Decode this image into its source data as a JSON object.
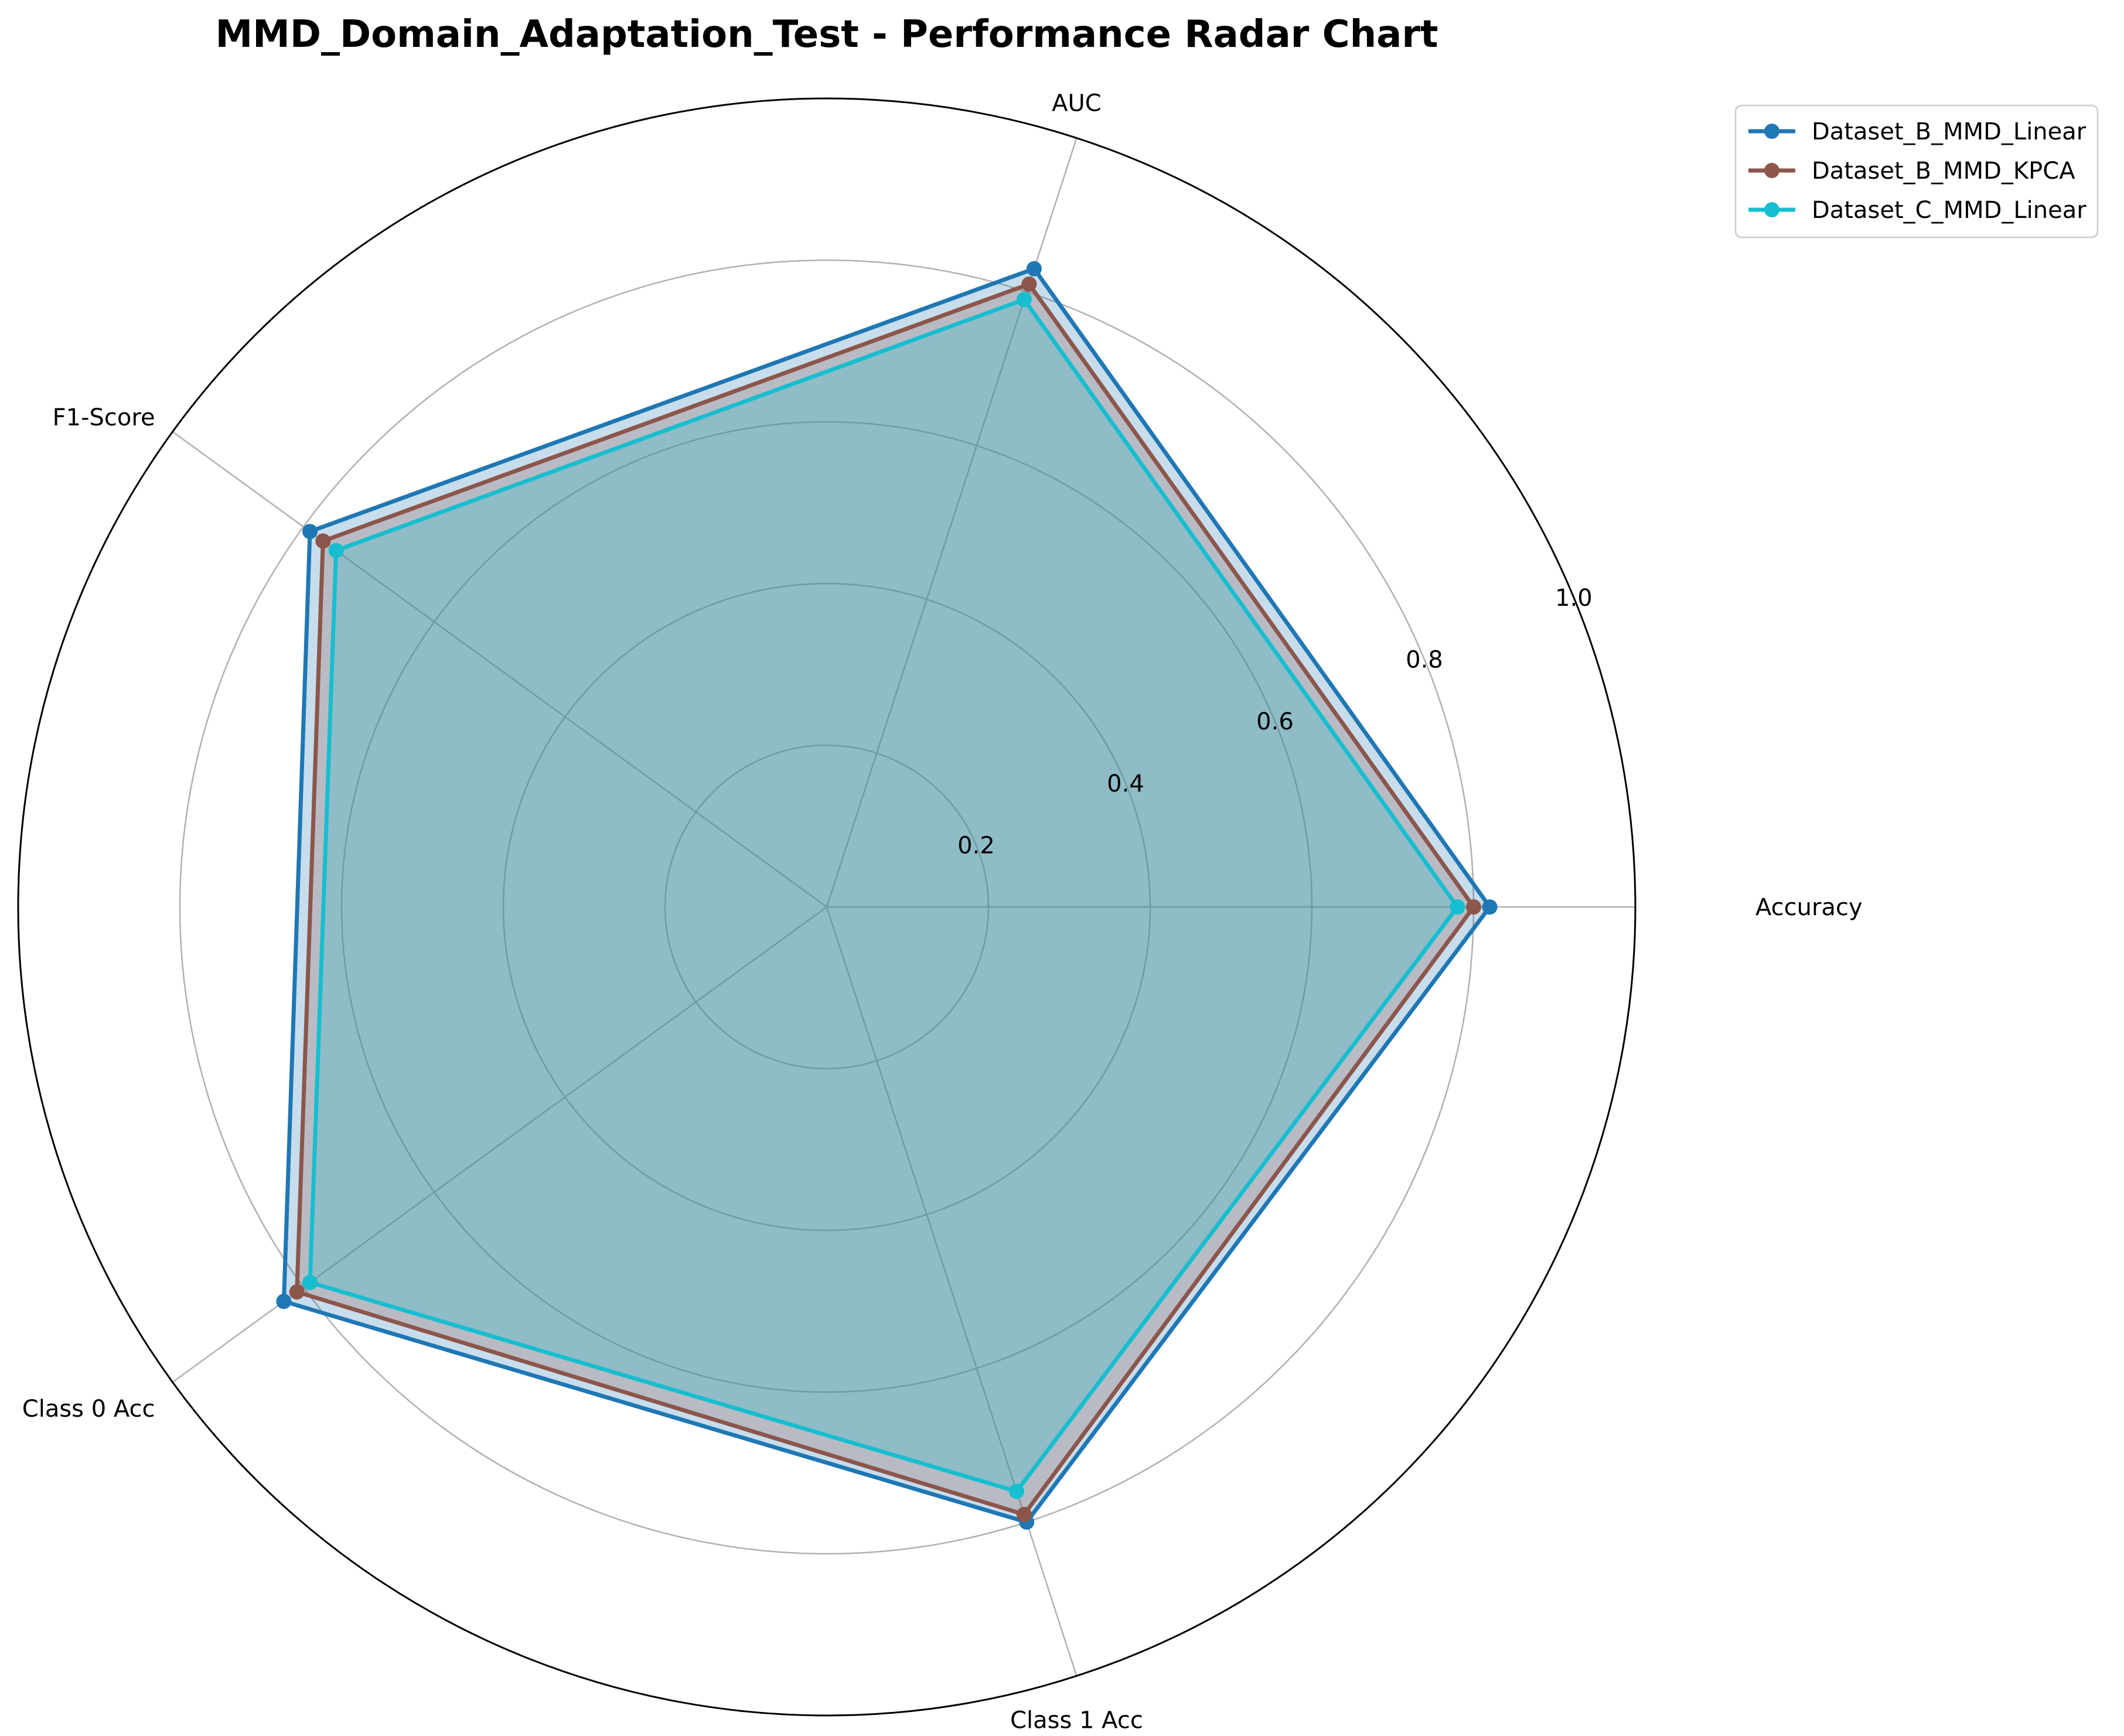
{
  "chart_data": {
    "type": "radar",
    "title": "MMD_Domain_Adaptation_Test - Performance Radar Chart",
    "categories": [
      "Accuracy",
      "AUC",
      "F1-Score",
      "Class 0 Acc",
      "Class 1 Acc"
    ],
    "rlim": [
      0,
      1.0
    ],
    "rticks": [
      0.2,
      0.4,
      0.6,
      0.8,
      1.0
    ],
    "rtick_labels": [
      "0.2",
      "0.4",
      "0.6",
      "0.8",
      "1.0"
    ],
    "grid": true,
    "legend_position": "top-right",
    "series": [
      {
        "name": "Dataset_B_MMD_Linear",
        "color": "#1f77b4",
        "values": [
          0.82,
          0.83,
          0.79,
          0.83,
          0.8
        ]
      },
      {
        "name": "Dataset_B_MMD_KPCA",
        "color": "#8c564b",
        "values": [
          0.8,
          0.81,
          0.77,
          0.81,
          0.79
        ]
      },
      {
        "name": "Dataset_C_MMD_Linear",
        "color": "#17becf",
        "values": [
          0.78,
          0.79,
          0.75,
          0.79,
          0.76
        ]
      }
    ]
  }
}
